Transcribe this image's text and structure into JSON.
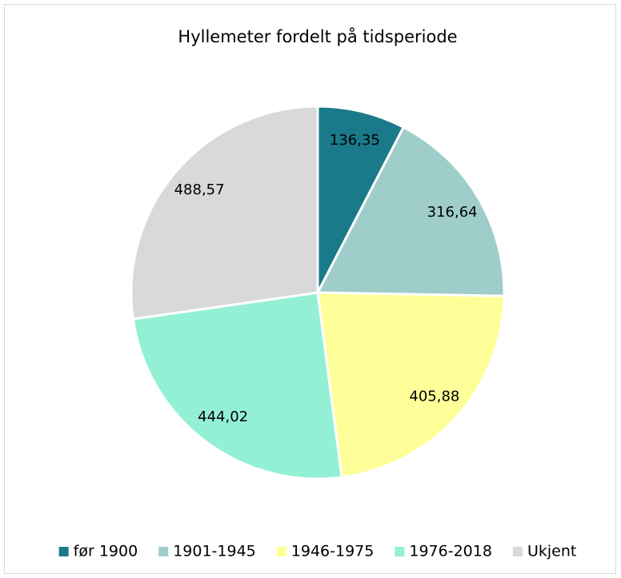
{
  "chart_data": {
    "type": "pie",
    "title": "Hyllemeter fordelt på tidsperiode",
    "categories": [
      "før 1900",
      "1901-1945",
      "1946-1975",
      "1976-2018",
      "Ukjent"
    ],
    "values": [
      136.35,
      316.64,
      405.88,
      444.02,
      488.57
    ],
    "value_labels": [
      "136,35",
      "316,64",
      "405,88",
      "444,02",
      "488,57"
    ],
    "colors": [
      "#1a7a89",
      "#9ecdca",
      "#ffff99",
      "#93f0d4",
      "#d9d9d9"
    ],
    "legend": "bottom"
  }
}
